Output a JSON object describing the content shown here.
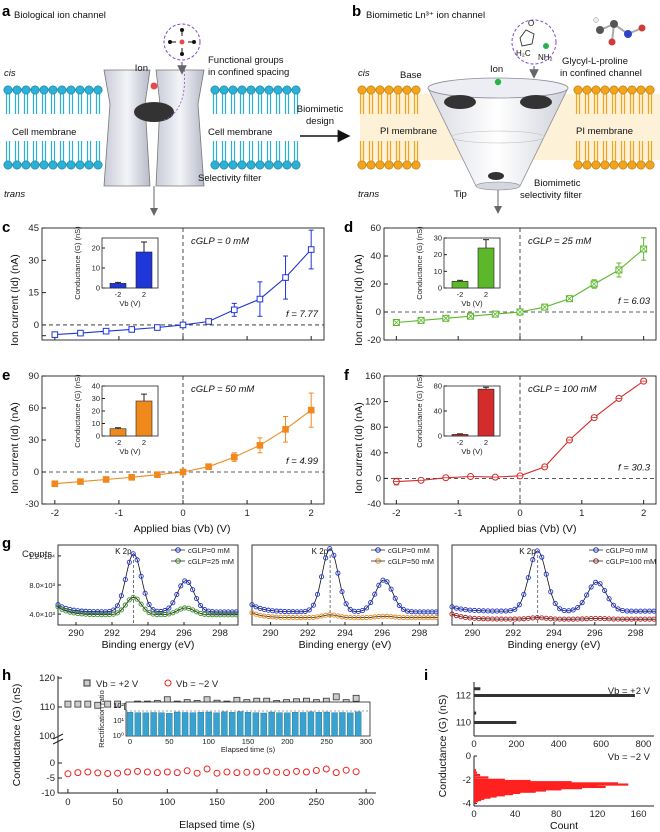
{
  "panel_labels": {
    "a": "a",
    "b": "b",
    "c": "c",
    "d": "d",
    "e": "e",
    "f": "f",
    "g": "g",
    "h": "h",
    "i": "i"
  },
  "panel_a": {
    "title": "Biological ion channel",
    "cis": "cis",
    "trans": "trans",
    "ion": "Ion",
    "cell_membrane_left": "Cell membrane",
    "cell_membrane_right": "Cell membrane",
    "selectivity_filter": "Selectivity filter",
    "functional_groups_1": "Functional groups",
    "functional_groups_2": "in confined spacing"
  },
  "arrow_label": {
    "line1": "Biomimetic",
    "line2": "design"
  },
  "panel_b": {
    "title": "Biomimetic Ln³⁺ ion channel",
    "cis": "cis",
    "trans": "trans",
    "base": "Base",
    "ion": "Ion",
    "tip": "Tip",
    "pi_membrane_left": "PI membrane",
    "pi_membrane_right": "PI membrane",
    "biomimetic_1": "Biomimetic",
    "biomimetic_2": "selectivity filter",
    "glp_1": "Glycyl-L-proline",
    "glp_2": "in confined channel",
    "molecule_o": "O",
    "molecule_nh2": "NH₂",
    "molecule_h2c": "H₂C"
  },
  "iv_common": {
    "ylabel": "Ion current (Id) (nA)",
    "xlabel": "Applied bias (Vb) (V)",
    "inset_ylabel": "Conductance (G) (nS)",
    "inset_xlabel": "Vb (V)"
  },
  "colors": {
    "blue": "#1f36d8",
    "green": "#5cb82a",
    "orange": "#f0891c",
    "red": "#d42b2b",
    "xps_blue": "#1f36d8",
    "xps_green": "#3d8f24",
    "xps_orange": "#e88a1a",
    "xps_red": "#b52222",
    "membrane_blue": "#2bb0d6",
    "membrane_orange": "#f2a41c",
    "bar_h": "#3aa2cf",
    "hist_red": "#ff2020"
  },
  "chart_data": [
    {
      "id": "c",
      "type": "line",
      "title": "cGLP = 0 mM",
      "annotation": "f = 7.77",
      "xlabel": "Applied bias (Vb) (V)",
      "ylabel": "Ion current (Id) (nA)",
      "xlim": [
        -2.2,
        2.2
      ],
      "ylim": [
        -7,
        45
      ],
      "yticks": [
        -5,
        0,
        15,
        30,
        45
      ],
      "yticklabels": [
        "",
        "0",
        "15",
        "30",
        "45"
      ],
      "x": [
        -2,
        -1.6,
        -1.2,
        -0.8,
        -0.4,
        0,
        0.4,
        0.8,
        1.2,
        1.6,
        2
      ],
      "y": [
        -4.5,
        -3.8,
        -2.9,
        -2.1,
        -1.2,
        0,
        1.6,
        7,
        12,
        22,
        35
      ],
      "err": [
        0.6,
        0.5,
        0.4,
        0.3,
        0.2,
        0.1,
        0.8,
        3,
        8,
        10,
        9
      ],
      "inset": {
        "categories": [
          "-2",
          "2"
        ],
        "values": [
          2.3,
          18
        ],
        "errors": [
          0.5,
          5
        ],
        "ylim": [
          0,
          25
        ],
        "yticks": [
          0,
          10,
          20
        ]
      }
    },
    {
      "id": "d",
      "type": "line",
      "title": "cGLP = 25 mM",
      "annotation": "f = 6.03",
      "xlabel": "Applied bias (Vb) (V)",
      "ylabel": "Ion current (Id) (nA)",
      "xlim": [
        -2.2,
        2.2
      ],
      "ylim": [
        -20,
        60
      ],
      "yticks": [
        -20,
        0,
        20,
        40,
        60
      ],
      "yticklabels": [
        "-20",
        "0",
        "20",
        "40",
        "60"
      ],
      "x": [
        -2,
        -1.6,
        -1.2,
        -0.8,
        -0.4,
        0,
        0.4,
        0.8,
        1.2,
        1.6,
        2
      ],
      "y": [
        -7.5,
        -6,
        -4.5,
        -3,
        -1.5,
        0,
        3.5,
        9.5,
        20,
        30,
        45
      ],
      "err": [
        1,
        1,
        0.8,
        0.6,
        0.4,
        0.2,
        1,
        2,
        3,
        5,
        8
      ],
      "inset": {
        "categories": [
          "-2",
          "2"
        ],
        "values": [
          4,
          24
        ],
        "errors": [
          0.6,
          5
        ],
        "ylim": [
          0,
          30
        ],
        "yticks": [
          0,
          10,
          20,
          30
        ]
      }
    },
    {
      "id": "e",
      "type": "line",
      "title": "cGLP = 50 mM",
      "annotation": "f = 4.99",
      "xlabel": "Applied bias (Vb) (V)",
      "ylabel": "Ion current (Id) (nA)",
      "xlim": [
        -2.2,
        2.2
      ],
      "ylim": [
        -30,
        90
      ],
      "yticks": [
        -30,
        0,
        30,
        60,
        90
      ],
      "yticklabels": [
        "-30",
        "0",
        "30",
        "60",
        "90"
      ],
      "x": [
        -2,
        -1.6,
        -1.2,
        -0.8,
        -0.4,
        0,
        0.4,
        0.8,
        1.2,
        1.6,
        2
      ],
      "y": [
        -11,
        -9,
        -7,
        -5,
        -2.5,
        0,
        5,
        14,
        25,
        40,
        58
      ],
      "err": [
        1,
        1,
        1,
        1,
        1,
        0.5,
        2,
        4,
        7,
        12,
        16
      ],
      "inset": {
        "categories": [
          "-2",
          "2"
        ],
        "values": [
          5.8,
          28
        ],
        "errors": [
          0.8,
          5.5
        ],
        "ylim": [
          0,
          40
        ],
        "yticks": [
          0,
          10,
          20,
          30,
          40
        ]
      }
    },
    {
      "id": "f",
      "type": "line",
      "title": "cGLP = 100 mM",
      "annotation": "f = 30.3",
      "xlabel": "Applied bias (Vb) (V)",
      "ylabel": "Ion current (Id) (nA)",
      "xlim": [
        -2.2,
        2.2
      ],
      "ylim": [
        -40,
        160
      ],
      "yticks": [
        -40,
        0,
        40,
        80,
        120,
        160
      ],
      "yticklabels": [
        "-40",
        "0",
        "40",
        "80",
        "120",
        "160"
      ],
      "x": [
        -2,
        -1.6,
        -1.2,
        -0.8,
        -0.4,
        0,
        0.4,
        0.8,
        1.2,
        1.6,
        2
      ],
      "y": [
        -5,
        -3,
        1,
        3,
        2,
        4,
        18,
        60,
        95,
        125,
        152
      ],
      "err": [
        5,
        3,
        2,
        2,
        2,
        2,
        2,
        3,
        3,
        3,
        3
      ],
      "inset": {
        "categories": [
          "-2",
          "2"
        ],
        "values": [
          2.5,
          75
        ],
        "errors": [
          1,
          3
        ],
        "ylim": [
          0,
          80
        ],
        "yticks": [
          0,
          40,
          80
        ]
      }
    },
    {
      "id": "g1",
      "type": "scatter",
      "xlabel": "Binding energy (eV)",
      "ylabel": "Counts",
      "xlim": [
        289,
        299
      ],
      "ylim": [
        2500,
        13500
      ],
      "xticks": [
        290,
        292,
        294,
        296,
        298
      ],
      "yticks": [
        4000,
        8000,
        12000
      ],
      "yticklabels": [
        "4.0×10³",
        "8.0×10³",
        "1.2×10⁴"
      ],
      "peak_label": "K 2p",
      "ref_line": 293.2,
      "series": [
        {
          "name": "cGLP=0 mM",
          "color": "#1f36d8",
          "peaks": [
            12300,
            8600
          ],
          "base": 4300,
          "start": 5300
        },
        {
          "name": "cGLP=25 mM",
          "color": "#3d8f24",
          "peaks": [
            6300,
            4850
          ],
          "base": 3900,
          "start": 5000
        }
      ]
    },
    {
      "id": "g2",
      "type": "scatter",
      "xlabel": "Binding energy (eV)",
      "ylabel": "",
      "xlim": [
        289,
        299
      ],
      "ylim": [
        2500,
        13500
      ],
      "xticks": [
        290,
        292,
        294,
        296,
        298
      ],
      "peak_label": "K 2p",
      "ref_line": 293.2,
      "series": [
        {
          "name": "cGLP=0 mM",
          "color": "#1f36d8",
          "peaks": [
            13000,
            8700
          ],
          "base": 4300,
          "start": 5300
        },
        {
          "name": "cGLP=50 mM",
          "color": "#e88a1a",
          "peaks": [
            3900,
            3700
          ],
          "base": 3500,
          "start": 4200
        }
      ]
    },
    {
      "id": "g3",
      "type": "scatter",
      "xlabel": "Binding energy (eV)",
      "ylabel": "",
      "xlim": [
        289,
        299
      ],
      "ylim": [
        2500,
        13500
      ],
      "xticks": [
        290,
        292,
        294,
        296,
        298
      ],
      "peak_label": "K 2p",
      "ref_line": 293.2,
      "series": [
        {
          "name": "cGLP=0 mM",
          "color": "#1f36d8",
          "peaks": [
            12700,
            8400
          ],
          "base": 4400,
          "start": 5000
        },
        {
          "name": "cGLP=100 mM",
          "color": "#b52222",
          "peaks": [
            3500,
            3400
          ],
          "base": 3300,
          "start": 4000
        }
      ]
    },
    {
      "id": "h",
      "type": "scatter",
      "xlabel": "Elapsed time (s)",
      "ylabel": "Conductance (G) (nS)",
      "xlim": [
        -10,
        310
      ],
      "xticks": [
        0,
        50,
        100,
        150,
        200,
        250,
        300
      ],
      "upper": {
        "ylim": [
          100,
          120
        ],
        "yticks": [
          110,
          120
        ],
        "yticklabels": [
          "110",
          "120"
        ]
      },
      "lower": {
        "ylim": [
          -10,
          5
        ],
        "yticks": [
          -10,
          -5,
          0
        ],
        "yticklabels": [
          "-10",
          "-5",
          "0"
        ]
      },
      "axis_extra_ticklabel": "100",
      "series": [
        {
          "name": "Vb = +2 V",
          "color": "#444444",
          "t": [
            0,
            10,
            20,
            30,
            40,
            50,
            60,
            70,
            80,
            90,
            100,
            110,
            120,
            130,
            140,
            150,
            160,
            170,
            180,
            190,
            200,
            210,
            220,
            230,
            240,
            250,
            260,
            270,
            280,
            290
          ],
          "g": [
            111,
            111,
            111,
            110.6,
            111,
            111,
            110.2,
            111,
            111,
            111.2,
            112.5,
            111,
            111.5,
            111.2,
            112.5,
            111.3,
            111,
            112.3,
            111.5,
            112,
            112,
            111.2,
            111.5,
            111.8,
            112,
            111.5,
            112,
            113.5,
            111.5,
            113
          ]
        },
        {
          "name": "Vb = −2 V",
          "color": "#ee2222",
          "t": [
            0,
            10,
            20,
            30,
            40,
            50,
            60,
            70,
            80,
            90,
            100,
            110,
            120,
            130,
            140,
            150,
            160,
            170,
            180,
            190,
            200,
            210,
            220,
            230,
            240,
            250,
            260,
            270,
            280,
            290
          ],
          "g": [
            -3.6,
            -3.2,
            -3,
            -3.3,
            -3.5,
            -3.4,
            -3,
            -2.8,
            -3,
            -3.2,
            -3,
            -3.2,
            -2.6,
            -3.4,
            -2,
            -3.4,
            -3,
            -3.2,
            -3.1,
            -3,
            -2.7,
            -3.1,
            -3.2,
            -2.8,
            -3,
            -2.5,
            -2,
            -3.2,
            -2.4,
            -2.9
          ]
        }
      ],
      "inset": {
        "type": "bar",
        "ylabel": "Rectification ratio",
        "xlabel": "Elapsed time (s)",
        "xticks": [
          0,
          50,
          100,
          150,
          200,
          250,
          300
        ],
        "yticks": [
          "10⁰",
          "10¹",
          "10²"
        ],
        "values": [
          40,
          38,
          37,
          39,
          38,
          35,
          42,
          39,
          38,
          40,
          42,
          37,
          43,
          40,
          45,
          40,
          38,
          36,
          42,
          38,
          37,
          41,
          39,
          43,
          40,
          42,
          38,
          39,
          37,
          43
        ]
      }
    },
    {
      "id": "i",
      "type": "bar",
      "xlabel": "Count",
      "ylabel": "Conductance (G) (nS)",
      "xticks": [
        0,
        200,
        400,
        600,
        800
      ],
      "xticks_lower": [
        0,
        40,
        80,
        120,
        160
      ],
      "upper": {
        "label": "Vb = +2 V",
        "yticks": [
          110,
          112
        ],
        "yticklabels": [
          "110",
          "112"
        ],
        "bins": [
          {
            "g": 112.5,
            "count": 30
          },
          {
            "g": 112,
            "count": 760
          },
          {
            "g": 110.7,
            "count": 10
          },
          {
            "g": 110,
            "count": 200
          }
        ]
      },
      "lower": {
        "label": "Vb = −2 V",
        "yticks": [
          -4,
          -2,
          0
        ],
        "yticklabels": [
          "-4",
          "-2",
          "0"
        ],
        "bins": [
          {
            "g": -1.2,
            "count": 2
          },
          {
            "g": -1.4,
            "count": 3
          },
          {
            "g": -1.6,
            "count": 6
          },
          {
            "g": -1.8,
            "count": 14
          },
          {
            "g": -2.0,
            "count": 30
          },
          {
            "g": -2.1,
            "count": 55
          },
          {
            "g": -2.2,
            "count": 95
          },
          {
            "g": -2.3,
            "count": 140
          },
          {
            "g": -2.4,
            "count": 150
          },
          {
            "g": -2.5,
            "count": 120
          },
          {
            "g": -2.6,
            "count": 128
          },
          {
            "g": -2.7,
            "count": 105
          },
          {
            "g": -2.8,
            "count": 85
          },
          {
            "g": -2.9,
            "count": 70
          },
          {
            "g": -3.0,
            "count": 60
          },
          {
            "g": -3.1,
            "count": 45
          },
          {
            "g": -3.2,
            "count": 38
          },
          {
            "g": -3.3,
            "count": 30
          },
          {
            "g": -3.4,
            "count": 22
          },
          {
            "g": -3.5,
            "count": 16
          },
          {
            "g": -3.6,
            "count": 10
          },
          {
            "g": -3.7,
            "count": 7
          },
          {
            "g": -3.8,
            "count": 4
          },
          {
            "g": -3.9,
            "count": 2
          }
        ]
      }
    }
  ]
}
